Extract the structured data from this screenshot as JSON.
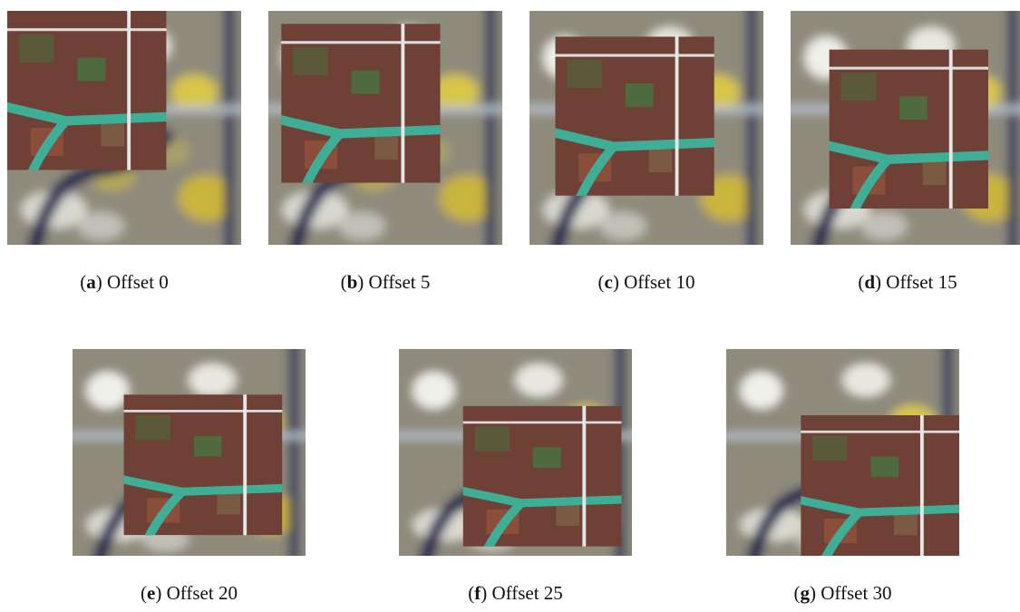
{
  "paren_open": "(",
  "paren_close": ")",
  "panels": [
    {
      "letter": "a",
      "caption": "Offset 0"
    },
    {
      "letter": "b",
      "caption": "Offset 5"
    },
    {
      "letter": "c",
      "caption": "Offset 10"
    },
    {
      "letter": "d",
      "caption": "Offset 15"
    },
    {
      "letter": "e",
      "caption": "Offset 20"
    },
    {
      "letter": "f",
      "caption": "Offset 25"
    },
    {
      "letter": "g",
      "caption": "Offset 30"
    }
  ]
}
